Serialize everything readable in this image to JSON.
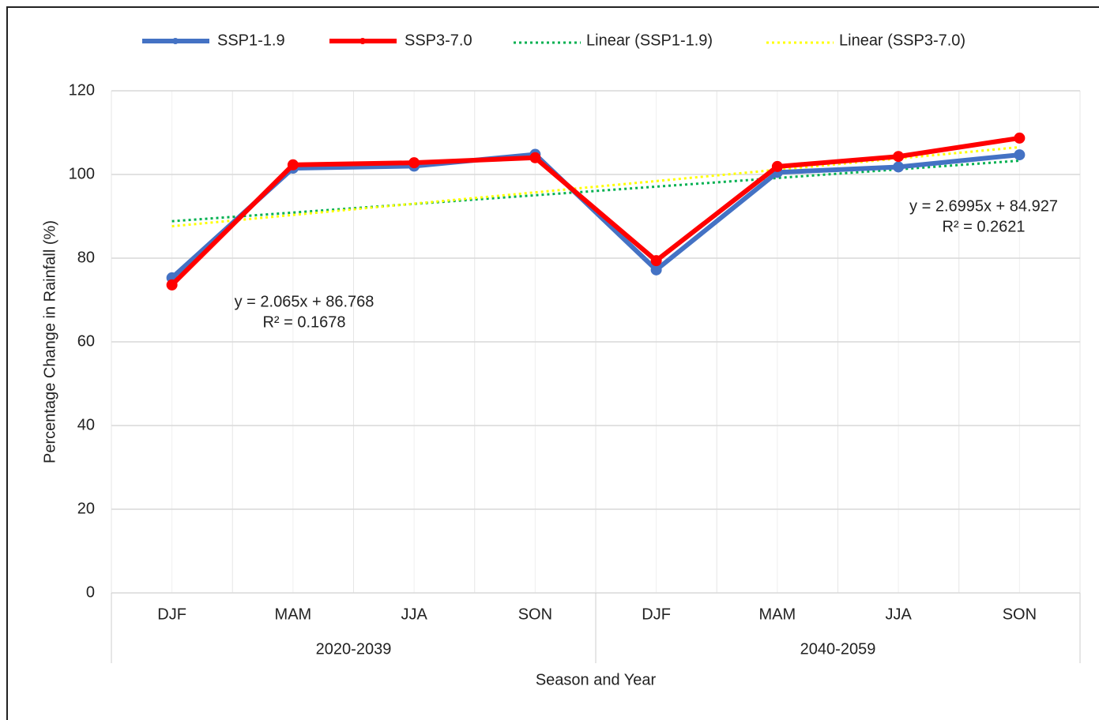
{
  "chart_data": {
    "type": "line",
    "categories": [
      "DJF",
      "MAM",
      "JJA",
      "SON",
      "DJF",
      "MAM",
      "JJA",
      "SON"
    ],
    "groups": [
      {
        "label": "2020-2039",
        "span": 4
      },
      {
        "label": "2040-2059",
        "span": 4
      }
    ],
    "series": [
      {
        "name": "SSP1-1.9",
        "color": "#4472c4",
        "values": [
          75.3,
          101.5,
          102,
          104.8,
          77.2,
          100.5,
          101.8,
          104.7
        ]
      },
      {
        "name": "SSP3-7.0",
        "color": "#ff0000",
        "values": [
          73.6,
          102.3,
          102.8,
          104,
          79.4,
          101.9,
          104.3,
          108.7
        ]
      }
    ],
    "trendlines": [
      {
        "name": "Linear (SSP1-1.9)",
        "color": "#00b050",
        "slope": 2.065,
        "intercept": 86.768,
        "equation": "y = 2.065x + 86.768",
        "r_squared": "R² = 0.1678"
      },
      {
        "name": "Linear (SSP3-7.0)",
        "color": "#ffff00",
        "slope": 2.6995,
        "intercept": 84.927,
        "equation": "y = 2.6995x + 84.927",
        "r_squared": "R² = 0.2621"
      }
    ],
    "ylim": [
      0,
      120
    ],
    "yticks": [
      0,
      20,
      40,
      60,
      80,
      100,
      120
    ],
    "grid": true,
    "xlabel": "Season and Year",
    "ylabel": "Percentage Change in Rainfall (%)",
    "legend": "top"
  }
}
